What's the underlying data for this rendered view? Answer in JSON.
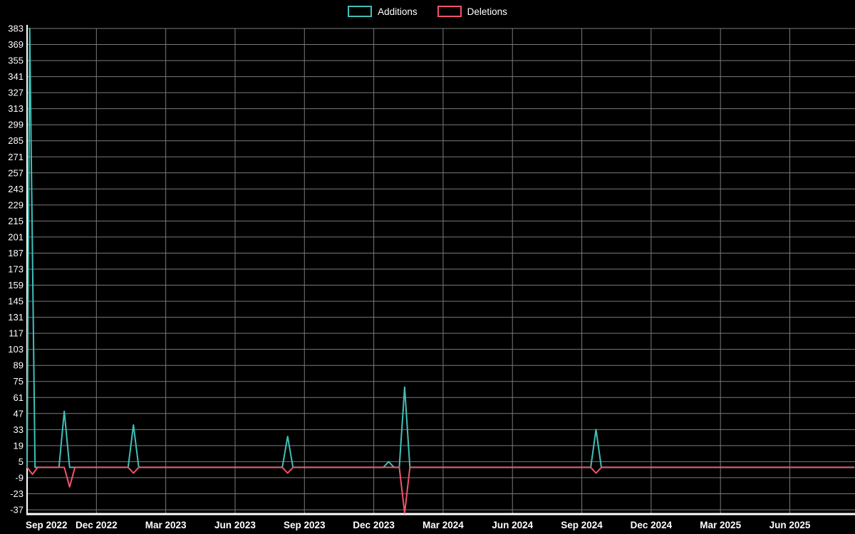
{
  "chart_data": {
    "type": "line",
    "title": "",
    "xlabel": "",
    "ylabel": "",
    "background_color": "#000000",
    "text_color": "#ffffff",
    "grid": true,
    "grid_color": "#7a7a7a",
    "axis_color": "#ffffff",
    "legend_position": "top-center",
    "x_axis_unit": "weeks since Sep 2022",
    "x_tick_labels": [
      "Sep 2022",
      "Dec 2022",
      "Mar 2023",
      "Jun 2023",
      "Sep 2023",
      "Dec 2023",
      "Mar 2024",
      "Jun 2024",
      "Sep 2024",
      "Dec 2024",
      "Mar 2025",
      "Jun 2025"
    ],
    "x_tick_step_weeks": 13.04,
    "xlim_weeks": [
      0,
      155.7
    ],
    "y_ticks": [
      383,
      369,
      355,
      341,
      327,
      313,
      299,
      285,
      271,
      257,
      243,
      229,
      215,
      201,
      187,
      173,
      159,
      145,
      131,
      117,
      103,
      89,
      75,
      61,
      47,
      33,
      19,
      5,
      -9,
      -23,
      -37
    ],
    "ylim": [
      -37,
      383
    ],
    "series": [
      {
        "name": "Additions",
        "color": "#3fc0b8",
        "points": [
          [
            0,
            0
          ],
          [
            0.5,
            383
          ],
          [
            1.5,
            0
          ],
          [
            6,
            0
          ],
          [
            7,
            49
          ],
          [
            8,
            0
          ],
          [
            19,
            0
          ],
          [
            20,
            37
          ],
          [
            21,
            0
          ],
          [
            48,
            0
          ],
          [
            49,
            27
          ],
          [
            50,
            0
          ],
          [
            67,
            0
          ],
          [
            68,
            5
          ],
          [
            69,
            0
          ],
          [
            70,
            0
          ],
          [
            71,
            70
          ],
          [
            72,
            0
          ],
          [
            106,
            0
          ],
          [
            107,
            33
          ],
          [
            108,
            0
          ],
          [
            155.5,
            0
          ]
        ]
      },
      {
        "name": "Deletions",
        "color": "#f0536b",
        "points": [
          [
            0,
            0
          ],
          [
            1,
            -6
          ],
          [
            2,
            0
          ],
          [
            7,
            0
          ],
          [
            8,
            -17
          ],
          [
            9,
            0
          ],
          [
            19,
            0
          ],
          [
            20,
            -5
          ],
          [
            21,
            0
          ],
          [
            48,
            0
          ],
          [
            49,
            -5
          ],
          [
            50,
            0
          ],
          [
            70,
            0
          ],
          [
            71,
            -40
          ],
          [
            72,
            0
          ],
          [
            106,
            0
          ],
          [
            107,
            -5
          ],
          [
            108,
            0
          ],
          [
            155.5,
            0
          ]
        ]
      }
    ]
  }
}
